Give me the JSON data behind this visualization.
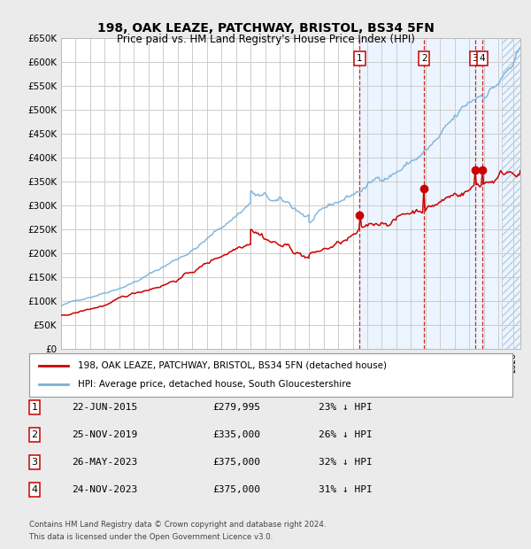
{
  "title": "198, OAK LEAZE, PATCHWAY, BRISTOL, BS34 5FN",
  "subtitle": "Price paid vs. HM Land Registry's House Price Index (HPI)",
  "ylim": [
    0,
    650000
  ],
  "yticks": [
    0,
    50000,
    100000,
    150000,
    200000,
    250000,
    300000,
    350000,
    400000,
    450000,
    500000,
    550000,
    600000,
    650000
  ],
  "ytick_labels": [
    "£0",
    "£50K",
    "£100K",
    "£150K",
    "£200K",
    "£250K",
    "£300K",
    "£350K",
    "£400K",
    "£450K",
    "£500K",
    "£550K",
    "£600K",
    "£650K"
  ],
  "bg_color": "#ebebeb",
  "plot_bg_color": "#ffffff",
  "grid_color": "#cccccc",
  "hpi_color": "#7ab0d8",
  "price_color": "#cc0000",
  "sales": [
    {
      "date": 2015.48,
      "price": 279995,
      "label": "1"
    },
    {
      "date": 2019.9,
      "price": 335000,
      "label": "2"
    },
    {
      "date": 2023.4,
      "price": 375000,
      "label": "3"
    },
    {
      "date": 2023.9,
      "price": 375000,
      "label": "4"
    }
  ],
  "vlines": [
    2015.48,
    2019.9,
    2023.4,
    2023.9
  ],
  "shade_start": 2015.48,
  "shade_end": 2026.0,
  "legend_line1": "198, OAK LEAZE, PATCHWAY, BRISTOL, BS34 5FN (detached house)",
  "legend_line2": "HPI: Average price, detached house, South Gloucestershire",
  "table": [
    {
      "num": "1",
      "date": "22-JUN-2015",
      "price": "£279,995",
      "hpi": "23% ↓ HPI"
    },
    {
      "num": "2",
      "date": "25-NOV-2019",
      "price": "£335,000",
      "hpi": "26% ↓ HPI"
    },
    {
      "num": "3",
      "date": "26-MAY-2023",
      "price": "£375,000",
      "hpi": "32% ↓ HPI"
    },
    {
      "num": "4",
      "date": "24-NOV-2023",
      "price": "£375,000",
      "hpi": "31% ↓ HPI"
    }
  ],
  "footer1": "Contains HM Land Registry data © Crown copyright and database right 2024.",
  "footer2": "This data is licensed under the Open Government Licence v3.0.",
  "xmin": 1995.0,
  "xmax": 2026.5
}
